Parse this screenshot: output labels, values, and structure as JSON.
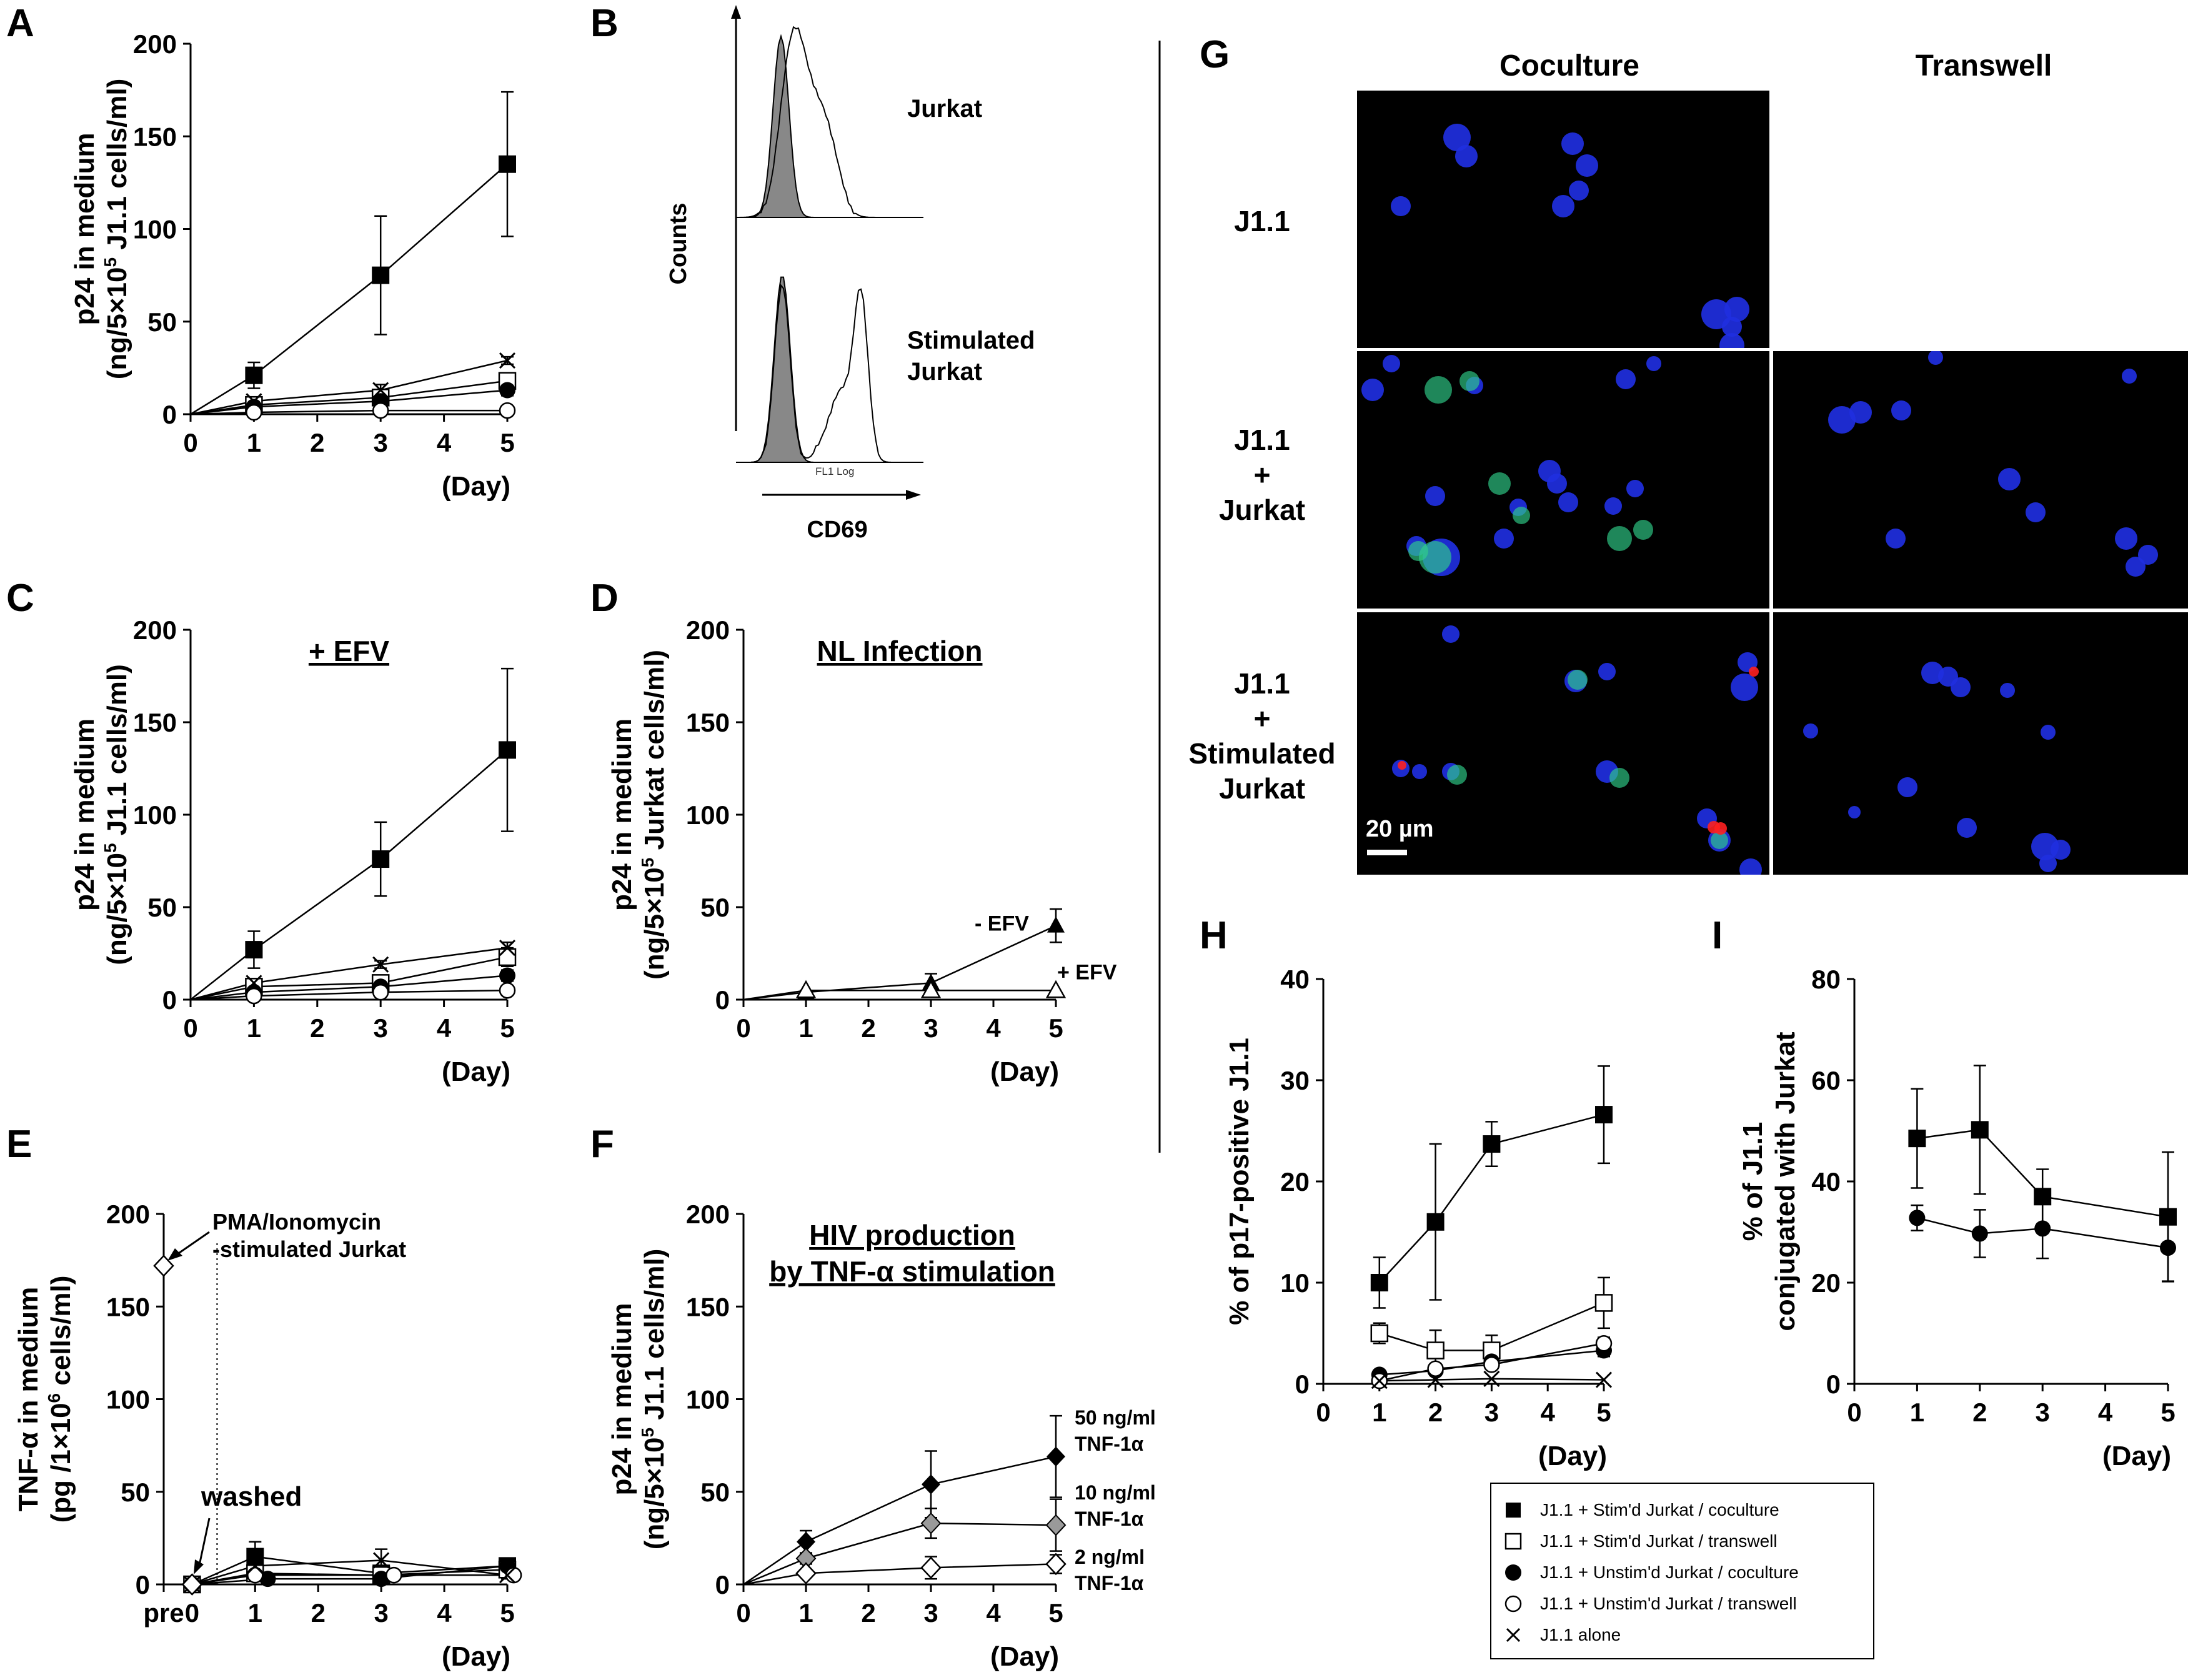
{
  "colors": {
    "axis": "#000000",
    "grey": "#9a9a9a",
    "micro_bg": "#000000",
    "nucleus": "#1f2fe0",
    "green": "#2fd08a",
    "red": "#ff2020"
  },
  "panel_labels": {
    "A": "A",
    "B": "B",
    "C": "C",
    "D": "D",
    "E": "E",
    "F": "F",
    "G": "G",
    "H": "H",
    "I": "I"
  },
  "chart_data": [
    {
      "id": "A",
      "type": "line",
      "ylabel_line1": "p24 in medium",
      "ylabel_line2": "(ng/5×10",
      "ylabel_sup": "5",
      "ylabel_line2b": " J1.1 cells/ml)",
      "xlabel": "(Day)",
      "title": "",
      "xlim": [
        0,
        5
      ],
      "ylim": [
        0,
        200
      ],
      "xticks": [
        "0",
        "1",
        "2",
        "3",
        "4",
        "5"
      ],
      "yticks": [
        "0",
        "50",
        "100",
        "150",
        "200"
      ],
      "series": [
        {
          "name": "J1.1 + Stim'd Jurkat / coculture",
          "marker": "square-filled",
          "x": [
            0,
            1,
            3,
            5
          ],
          "y": [
            0,
            21,
            75,
            135
          ],
          "err": [
            0,
            7,
            32,
            39
          ]
        },
        {
          "name": "J1.1 + Stim'd Jurkat / transwell",
          "marker": "square-open",
          "x": [
            0,
            1,
            3,
            5
          ],
          "y": [
            0,
            5,
            9,
            18
          ],
          "err": [
            0,
            2,
            3,
            4
          ]
        },
        {
          "name": "J1.1 + Unstim'd Jurkat / coculture",
          "marker": "circle-filled",
          "x": [
            0,
            1,
            3,
            5
          ],
          "y": [
            0,
            4,
            7,
            13
          ],
          "err": [
            0,
            1,
            2,
            3
          ]
        },
        {
          "name": "J1.1 + Unstim'd Jurkat / transwell",
          "marker": "circle-open",
          "x": [
            0,
            1,
            3,
            5
          ],
          "y": [
            0,
            1,
            2,
            2
          ],
          "err": [
            0,
            0,
            0,
            0
          ]
        },
        {
          "name": "J1.1 alone",
          "marker": "cross",
          "x": [
            0,
            1,
            3,
            5
          ],
          "y": [
            0,
            7,
            13,
            29
          ],
          "err": [
            0,
            2,
            3,
            2
          ]
        }
      ]
    },
    {
      "id": "C",
      "type": "line",
      "ylabel_line1": "p24 in medium",
      "ylabel_line2": "(ng/5×10",
      "ylabel_sup": "5",
      "ylabel_line2b": " J1.1 cells/ml)",
      "xlabel": "(Day)",
      "title": "+ EFV",
      "xlim": [
        0,
        5
      ],
      "ylim": [
        0,
        200
      ],
      "xticks": [
        "0",
        "1",
        "2",
        "3",
        "4",
        "5"
      ],
      "yticks": [
        "0",
        "50",
        "100",
        "150",
        "200"
      ],
      "series": [
        {
          "name": "J1.1 + Stim'd Jurkat / coculture",
          "marker": "square-filled",
          "x": [
            0,
            1,
            3,
            5
          ],
          "y": [
            0,
            27,
            76,
            135
          ],
          "err": [
            0,
            10,
            20,
            44
          ]
        },
        {
          "name": "J1.1 + Stim'd Jurkat / transwell",
          "marker": "square-open",
          "x": [
            0,
            1,
            3,
            5
          ],
          "y": [
            0,
            7,
            9,
            23
          ],
          "err": [
            0,
            2,
            3,
            5
          ]
        },
        {
          "name": "J1.1 + Unstim'd Jurkat / coculture",
          "marker": "circle-filled",
          "x": [
            0,
            1,
            3,
            5
          ],
          "y": [
            0,
            4,
            7,
            13
          ],
          "err": [
            0,
            1,
            2,
            3
          ]
        },
        {
          "name": "J1.1 + Unstim'd Jurkat / transwell",
          "marker": "circle-open",
          "x": [
            0,
            1,
            3,
            5
          ],
          "y": [
            0,
            2,
            4,
            5
          ],
          "err": [
            0,
            0,
            0,
            0
          ]
        },
        {
          "name": "J1.1 alone",
          "marker": "cross",
          "x": [
            0,
            1,
            3,
            5
          ],
          "y": [
            0,
            9,
            19,
            28
          ],
          "err": [
            0,
            2,
            2,
            3
          ]
        }
      ]
    },
    {
      "id": "D",
      "type": "line",
      "ylabel_line1": "p24 in medium",
      "ylabel_line2": "(ng/5×10",
      "ylabel_sup": "5",
      "ylabel_line2b": " Jurkat cells/ml)",
      "xlabel": "(Day)",
      "title": "NL Infection",
      "xlim": [
        0,
        5
      ],
      "ylim": [
        0,
        200
      ],
      "xticks": [
        "0",
        "1",
        "2",
        "3",
        "4",
        "5"
      ],
      "yticks": [
        "0",
        "50",
        "100",
        "150",
        "200"
      ],
      "annotations": [
        "- EFV",
        "+ EFV"
      ],
      "series": [
        {
          "name": "- EFV",
          "marker": "triangle-filled",
          "x": [
            0,
            1,
            3,
            5
          ],
          "y": [
            0,
            4,
            9,
            40
          ],
          "err": [
            0,
            1,
            5,
            9
          ]
        },
        {
          "name": "+ EFV",
          "marker": "triangle-open",
          "x": [
            0,
            1,
            3,
            5
          ],
          "y": [
            0,
            5,
            5,
            5
          ],
          "err": [
            0,
            0,
            0,
            0
          ]
        }
      ]
    },
    {
      "id": "E",
      "type": "line",
      "ylabel_line1": "TNF-α in medium",
      "ylabel_line2": "(pg /1×10",
      "ylabel_sup": "6",
      "ylabel_line2b": " cells/ml)",
      "xlabel": "(Day)",
      "title": "",
      "xlim": [
        -0.45,
        5
      ],
      "ylim": [
        0,
        200
      ],
      "xticks": [
        "pre",
        "0",
        "1",
        "2",
        "3",
        "4",
        "5"
      ],
      "yticks": [
        "0",
        "50",
        "100",
        "150",
        "200"
      ],
      "annotations": [
        "PMA/Ionomycin",
        "-stimulated Jurkat",
        "washed"
      ],
      "series": [
        {
          "name": "pre",
          "marker": "diamond-open",
          "x": [
            -0.45
          ],
          "y": [
            172
          ],
          "err": [
            0
          ]
        },
        {
          "name": "J1.1 + Stim'd Jurkat / coculture",
          "marker": "square-filled",
          "x": [
            0,
            1,
            3,
            5
          ],
          "y": [
            0,
            15,
            6,
            10
          ],
          "err": [
            0,
            8,
            4,
            4
          ]
        },
        {
          "name": "J1.1 + Stim'd Jurkat / transwell",
          "marker": "square-open",
          "x": [
            0,
            1,
            3,
            5
          ],
          "y": [
            0,
            6,
            5,
            8
          ],
          "err": [
            0,
            2,
            3,
            2
          ]
        },
        {
          "name": "J1.1 + Unstim'd Jurkat / coculture",
          "marker": "circle-filled",
          "x": [
            0,
            1.2,
            3,
            5
          ],
          "y": [
            0,
            3,
            3,
            10
          ],
          "err": [
            0,
            0,
            0,
            2
          ]
        },
        {
          "name": "J1.1 + Unstim'd Jurkat / transwell",
          "marker": "circle-open",
          "x": [
            0,
            1,
            3.2,
            5.1
          ],
          "y": [
            0,
            5,
            5,
            5
          ],
          "err": [
            0,
            0,
            0,
            0
          ]
        },
        {
          "name": "J1.1 alone",
          "marker": "cross",
          "x": [
            0,
            1,
            3,
            5
          ],
          "y": [
            0,
            10,
            13,
            5
          ],
          "err": [
            0,
            2,
            6,
            2
          ]
        }
      ]
    },
    {
      "id": "F",
      "type": "line",
      "ylabel_line1": "p24 in medium",
      "ylabel_line2": "(ng/5×10",
      "ylabel_sup": "5",
      "ylabel_line2b": " J1.1 cells/ml)",
      "xlabel": "(Day)",
      "title": "HIV production",
      "title2": "by TNF-α stimulation",
      "xlim": [
        0,
        5
      ],
      "ylim": [
        0,
        200
      ],
      "xticks": [
        "0",
        "1",
        "2",
        "3",
        "4",
        "5"
      ],
      "yticks": [
        "0",
        "50",
        "100",
        "150",
        "200"
      ],
      "annotations": [
        "50 ng/ml",
        "TNF-1α",
        "10 ng/ml",
        "TNF-1α",
        "2 ng/ml",
        "TNF-1α"
      ],
      "series": [
        {
          "name": "50 ng/ml TNF-1α",
          "marker": "diamond-filled",
          "x": [
            0,
            1,
            3,
            5
          ],
          "y": [
            0,
            23,
            54,
            69
          ],
          "err": [
            0,
            6,
            18,
            22
          ]
        },
        {
          "name": "10 ng/ml TNF-1α",
          "marker": "diamond-grey",
          "x": [
            0,
            1,
            3,
            5
          ],
          "y": [
            0,
            14,
            33,
            32
          ],
          "err": [
            0,
            3,
            8,
            14
          ]
        },
        {
          "name": "2 ng/ml TNF-1α",
          "marker": "diamond-open",
          "x": [
            0,
            1,
            3,
            5
          ],
          "y": [
            0,
            6,
            9,
            11
          ],
          "err": [
            0,
            2,
            6,
            5
          ]
        }
      ]
    },
    {
      "id": "H",
      "type": "line",
      "ylabel_line1": "% of p17-positive J1.1",
      "ylabel_line2": "",
      "ylabel_sup": "",
      "ylabel_line2b": "",
      "xlabel": "(Day)",
      "title": "",
      "xlim": [
        0,
        5
      ],
      "ylim": [
        0,
        40
      ],
      "xticks": [
        "0",
        "1",
        "2",
        "3",
        "4",
        "5"
      ],
      "yticks": [
        "0",
        "10",
        "20",
        "30",
        "40"
      ],
      "series": [
        {
          "name": "J1.1 + Stim'd Jurkat / coculture",
          "marker": "square-filled",
          "x": [
            1,
            2,
            3,
            5
          ],
          "y": [
            10,
            16,
            23.7,
            26.6
          ],
          "err": [
            2.5,
            7.7,
            2.2,
            4.8
          ]
        },
        {
          "name": "J1.1 + Stim'd Jurkat / transwell",
          "marker": "square-open",
          "x": [
            1,
            2,
            3,
            5
          ],
          "y": [
            5,
            3.3,
            3.3,
            8
          ],
          "err": [
            1,
            2,
            1.5,
            2.5
          ]
        },
        {
          "name": "J1.1 + Unstim'd Jurkat / coculture",
          "marker": "circle-filled",
          "x": [
            1,
            2,
            3,
            5
          ],
          "y": [
            0.9,
            1.3,
            2.2,
            3.3
          ],
          "err": [
            0.4,
            0.4,
            0.4,
            0.6
          ]
        },
        {
          "name": "J1.1 + Unstim'd Jurkat / transwell",
          "marker": "circle-open",
          "x": [
            1,
            2,
            3,
            5
          ],
          "y": [
            0.3,
            1.5,
            1.9,
            4.0
          ],
          "err": [
            0.2,
            0.4,
            0.4,
            0.6
          ]
        },
        {
          "name": "J1.1 alone",
          "marker": "cross",
          "x": [
            1,
            2,
            3,
            5
          ],
          "y": [
            0.3,
            0.4,
            0.5,
            0.4
          ],
          "err": [
            0,
            0,
            0,
            0
          ]
        }
      ]
    },
    {
      "id": "I",
      "type": "line",
      "ylabel_line1": "% of J1.1",
      "ylabel_line2": "conjugated with Jurkat",
      "ylabel_sup": "",
      "ylabel_line2b": "",
      "xlabel": "(Day)",
      "title": "",
      "xlim": [
        0,
        5
      ],
      "ylim": [
        0,
        80
      ],
      "xticks": [
        "0",
        "1",
        "2",
        "3",
        "4",
        "5"
      ],
      "yticks": [
        "0",
        "20",
        "40",
        "60",
        "80"
      ],
      "series": [
        {
          "name": "J1.1 + Stim'd Jurkat / coculture",
          "marker": "square-filled",
          "x": [
            1,
            2,
            3,
            5
          ],
          "y": [
            48.5,
            50.2,
            37,
            33
          ],
          "err": [
            9.8,
            12.7,
            5.4,
            12.8
          ]
        },
        {
          "name": "J1.1 + Unstim'd Jurkat / coculture",
          "marker": "circle-filled",
          "x": [
            1,
            2,
            3,
            5
          ],
          "y": [
            32.8,
            29.7,
            30.7,
            26.9
          ],
          "err": [
            2.5,
            4.7,
            5.9,
            6.6
          ]
        }
      ]
    }
  ],
  "flow": {
    "ylabel": "Counts",
    "xlabel": "CD69",
    "axis_label": "FL1 Log",
    "top_label": "Jurkat",
    "bottom_label_1": "Stimulated",
    "bottom_label_2": "Jurkat"
  },
  "micro": {
    "columns": [
      "Coculture",
      "Transwell"
    ],
    "rows": [
      {
        "line1": "J1.1",
        "line2": "",
        "line3": "",
        "line4": ""
      },
      {
        "line1": "J1.1",
        "line2": "+",
        "line3": "Jurkat",
        "line4": ""
      },
      {
        "line1": "J1.1",
        "line2": "+",
        "line3": "Stimulated",
        "line4": "Jurkat"
      }
    ],
    "scale_bar": "20 µm"
  },
  "legend": [
    {
      "marker": "square-filled",
      "label": "J1.1 + Stim'd Jurkat  / coculture"
    },
    {
      "marker": "square-open",
      "label": "J1.1 + Stim'd Jurkat / transwell"
    },
    {
      "marker": "circle-filled",
      "label": "J1.1 + Unstim'd Jurkat / coculture"
    },
    {
      "marker": "circle-open",
      "label": "J1.1 + Unstim'd Jurkat / transwell"
    },
    {
      "marker": "cross",
      "label": "J1.1 alone"
    }
  ]
}
